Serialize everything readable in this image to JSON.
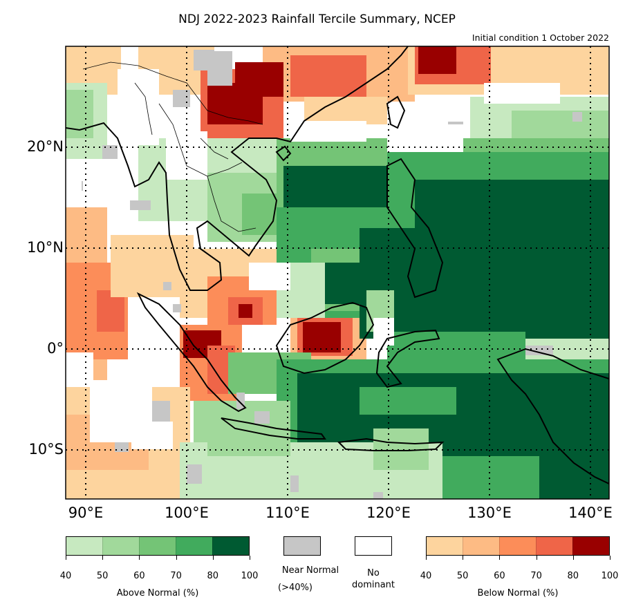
{
  "title": "NDJ 2022-2023 Rainfall Tercile Summary, NCEP",
  "subtitle": "Initial condition 1 October 2022",
  "map": {
    "lat_labels": [
      "20°N",
      "10°N",
      "0°",
      "10°S"
    ],
    "lon_labels": [
      "90°E",
      "100°E",
      "110°E",
      "120°E",
      "130°E",
      "140°E"
    ]
  },
  "legend": {
    "above": {
      "label": "Above Normal (%)",
      "ticks": [
        "40",
        "50",
        "60",
        "70",
        "80",
        "100"
      ],
      "colors": [
        "#c7e9c0",
        "#a1d99b",
        "#74c476",
        "#41ab5d",
        "#005a32"
      ]
    },
    "near": {
      "label_line1": "Near Normal",
      "label_line2": "(>40%)",
      "color": "#c6c6c6"
    },
    "none": {
      "label_line1": "No",
      "label_line2": "dominant",
      "color": "#ffffff"
    },
    "below": {
      "label": "Below Normal (%)",
      "ticks": [
        "40",
        "50",
        "60",
        "70",
        "80",
        "100"
      ],
      "colors": [
        "#fdd49e",
        "#fdbb84",
        "#fc8d59",
        "#ef6548",
        "#990000"
      ]
    }
  }
}
